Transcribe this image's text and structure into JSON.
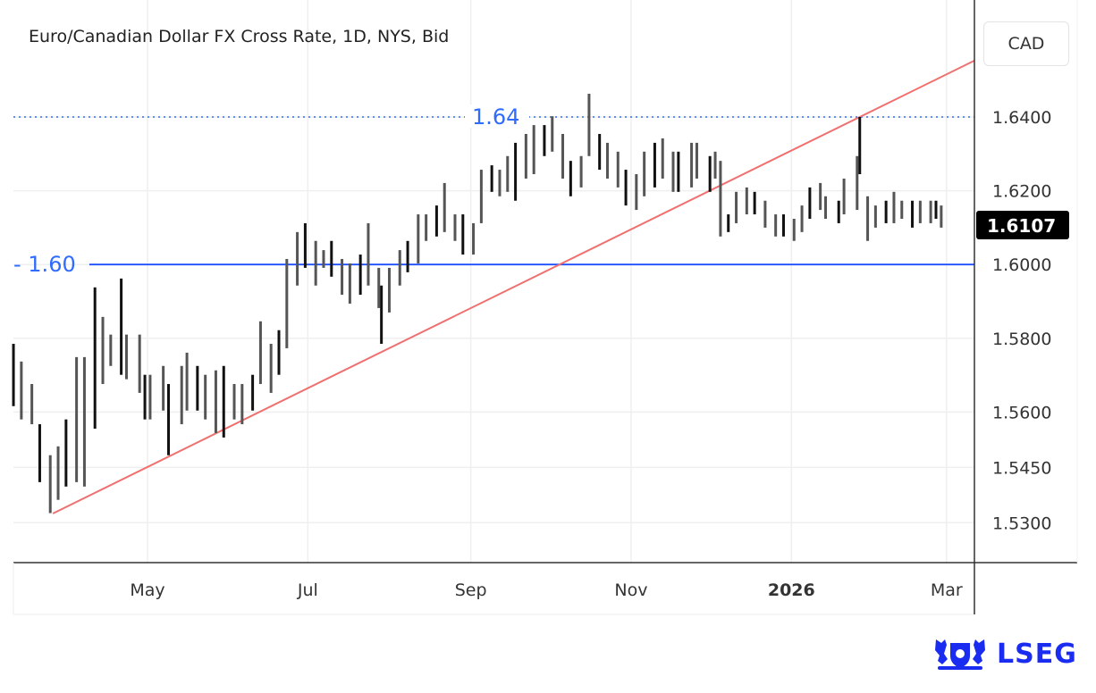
{
  "header": {
    "title": "Euro/Canadian Dollar FX Cross Rate, 1D, NYS, Bid",
    "currency_button": "CAD"
  },
  "brand": {
    "logo_text": "LSEG",
    "color": "#1a2cf0"
  },
  "chart_data": {
    "type": "ohlc-bar",
    "title": "Euro/Canadian Dollar FX Cross Rate, 1D, NYS, Bid",
    "yunit": "CAD",
    "ylim": [
      1.5225,
      1.656
    ],
    "xlim": [
      "2025-03-10",
      "2026-03-10"
    ],
    "yticks": [
      1.64,
      1.62,
      1.6,
      1.58,
      1.56,
      1.545,
      1.53
    ],
    "ytick_labels": [
      "1.6400",
      "1.6200",
      "1.6000",
      "1.5800",
      "1.5600",
      "1.5450",
      "1.5300"
    ],
    "xticks": [
      {
        "date": "2025-05-01",
        "label": "May",
        "bold": false
      },
      {
        "date": "2025-07-01",
        "label": "Jul",
        "bold": false
      },
      {
        "date": "2025-09-01",
        "label": "Sep",
        "bold": false
      },
      {
        "date": "2025-11-01",
        "label": "Nov",
        "bold": false
      },
      {
        "date": "2026-01-01",
        "label": "2026",
        "bold": true
      },
      {
        "date": "2026-03-01",
        "label": "Mar",
        "bold": false
      }
    ],
    "grid": true,
    "last_price": {
      "value": 1.6107,
      "label": "1.6107"
    },
    "horizontal_lines": [
      {
        "value": 1.64,
        "label": "1.64",
        "style": "dotted",
        "color": "#2f6bff"
      },
      {
        "value": 1.6,
        "label": "- 1.60",
        "style": "solid",
        "color": "#1e4fff"
      }
    ],
    "trendline": {
      "color": "#f07070",
      "points": [
        [
          "2025-03-26",
          1.5325
        ],
        [
          "2026-01-27",
          1.64
        ]
      ]
    },
    "bars": [
      [
        "2025-03-11",
        1.5785,
        1.5616
      ],
      [
        "2025-03-14",
        1.5737,
        1.558
      ],
      [
        "2025-03-18",
        1.5676,
        1.5567
      ],
      [
        "2025-03-21",
        1.5567,
        1.541
      ],
      [
        "2025-03-25",
        1.5483,
        1.5326
      ],
      [
        "2025-03-28",
        1.5507,
        1.5362
      ],
      [
        "2025-03-31",
        1.558,
        1.5398
      ],
      [
        "2025-04-04",
        1.5749,
        1.541
      ],
      [
        "2025-04-07",
        1.5749,
        1.5398
      ],
      [
        "2025-04-11",
        1.5938,
        1.5555
      ],
      [
        "2025-04-14",
        1.5858,
        1.5676
      ],
      [
        "2025-04-17",
        1.581,
        1.5725
      ],
      [
        "2025-04-21",
        1.5962,
        1.5701
      ],
      [
        "2025-04-23",
        1.581,
        1.5689
      ],
      [
        "2025-04-28",
        1.581,
        1.5652
      ],
      [
        "2025-04-30",
        1.5701,
        1.558
      ],
      [
        "2025-05-02",
        1.5701,
        1.558
      ],
      [
        "2025-05-07",
        1.5725,
        1.5604
      ],
      [
        "2025-05-09",
        1.5676,
        1.5483
      ],
      [
        "2025-05-14",
        1.5725,
        1.5567
      ],
      [
        "2025-05-16",
        1.5761,
        1.5604
      ],
      [
        "2025-05-20",
        1.5725,
        1.5604
      ],
      [
        "2025-05-23",
        1.5701,
        1.558
      ],
      [
        "2025-05-27",
        1.5713,
        1.5543
      ],
      [
        "2025-05-30",
        1.5725,
        1.5531
      ],
      [
        "2025-06-03",
        1.5676,
        1.558
      ],
      [
        "2025-06-06",
        1.5676,
        1.5567
      ],
      [
        "2025-06-10",
        1.5701,
        1.5604
      ],
      [
        "2025-06-13",
        1.5846,
        1.5676
      ],
      [
        "2025-06-17",
        1.5785,
        1.5652
      ],
      [
        "2025-06-20",
        1.5822,
        1.5701
      ],
      [
        "2025-06-23",
        1.6015,
        1.5773
      ],
      [
        "2025-06-27",
        1.6088,
        1.5943
      ],
      [
        "2025-06-30",
        1.6112,
        1.5991
      ],
      [
        "2025-07-04",
        1.6064,
        1.5943
      ],
      [
        "2025-07-07",
        1.6039,
        1.5991
      ],
      [
        "2025-07-10",
        1.6064,
        1.5967
      ],
      [
        "2025-07-14",
        1.6015,
        1.5918
      ],
      [
        "2025-07-17",
        1.6003,
        1.5894
      ],
      [
        "2025-07-21",
        1.6027,
        1.5918
      ],
      [
        "2025-07-24",
        1.6112,
        1.5943
      ],
      [
        "2025-07-28",
        1.5991,
        1.5882
      ],
      [
        "2025-07-29",
        1.5943,
        1.5785
      ],
      [
        "2025-08-01",
        1.5991,
        1.587
      ],
      [
        "2025-08-05",
        1.6039,
        1.5943
      ],
      [
        "2025-08-08",
        1.6064,
        1.5979
      ],
      [
        "2025-08-12",
        1.6136,
        1.6003
      ],
      [
        "2025-08-15",
        1.6136,
        1.6064
      ],
      [
        "2025-08-19",
        1.616,
        1.6076
      ],
      [
        "2025-08-22",
        1.6221,
        1.6088
      ],
      [
        "2025-08-26",
        1.6136,
        1.6064
      ],
      [
        "2025-08-29",
        1.6136,
        1.6027
      ],
      [
        "2025-09-02",
        1.6112,
        1.6027
      ],
      [
        "2025-09-05",
        1.6257,
        1.6112
      ],
      [
        "2025-09-09",
        1.6269,
        1.6197
      ],
      [
        "2025-09-12",
        1.6257,
        1.6185
      ],
      [
        "2025-09-15",
        1.6294,
        1.6197
      ],
      [
        "2025-09-18",
        1.633,
        1.6173
      ],
      [
        "2025-09-22",
        1.6354,
        1.6233
      ],
      [
        "2025-09-25",
        1.6378,
        1.6245
      ],
      [
        "2025-09-29",
        1.6378,
        1.6294
      ],
      [
        "2025-10-02",
        1.6402,
        1.6306
      ],
      [
        "2025-10-06",
        1.6354,
        1.6233
      ],
      [
        "2025-10-09",
        1.6281,
        1.6185
      ],
      [
        "2025-10-13",
        1.6294,
        1.6209
      ],
      [
        "2025-10-16",
        1.6463,
        1.6294
      ],
      [
        "2025-10-20",
        1.6354,
        1.6257
      ],
      [
        "2025-10-23",
        1.633,
        1.6233
      ],
      [
        "2025-10-27",
        1.6306,
        1.6209
      ],
      [
        "2025-10-30",
        1.6257,
        1.616
      ],
      [
        "2025-11-03",
        1.6245,
        1.6148
      ],
      [
        "2025-11-06",
        1.6306,
        1.6185
      ],
      [
        "2025-11-10",
        1.633,
        1.6209
      ],
      [
        "2025-11-13",
        1.6342,
        1.6233
      ],
      [
        "2025-11-17",
        1.6306,
        1.6197
      ],
      [
        "2025-11-19",
        1.6306,
        1.6197
      ],
      [
        "2025-11-24",
        1.633,
        1.6209
      ],
      [
        "2025-11-26",
        1.633,
        1.6233
      ],
      [
        "2025-12-01",
        1.6294,
        1.6197
      ],
      [
        "2025-12-03",
        1.6306,
        1.6233
      ],
      [
        "2025-12-05",
        1.6281,
        1.6076
      ],
      [
        "2025-12-08",
        1.6136,
        1.6088
      ],
      [
        "2025-12-11",
        1.6197,
        1.6112
      ],
      [
        "2025-12-15",
        1.6209,
        1.6136
      ],
      [
        "2025-12-18",
        1.6197,
        1.6136
      ],
      [
        "2025-12-22",
        1.6173,
        1.61
      ],
      [
        "2025-12-26",
        1.6136,
        1.6076
      ],
      [
        "2025-12-29",
        1.6136,
        1.6076
      ],
      [
        "2026-01-02",
        1.6124,
        1.6064
      ],
      [
        "2026-01-05",
        1.616,
        1.6088
      ],
      [
        "2026-01-08",
        1.6209,
        1.6124
      ],
      [
        "2026-01-12",
        1.6221,
        1.6148
      ],
      [
        "2026-01-14",
        1.6185,
        1.6124
      ],
      [
        "2026-01-19",
        1.6173,
        1.6112
      ],
      [
        "2026-01-21",
        1.6233,
        1.6136
      ],
      [
        "2026-01-26",
        1.6294,
        1.6148
      ],
      [
        "2026-01-27",
        1.64,
        1.6245
      ],
      [
        "2026-01-30",
        1.6185,
        1.6064
      ],
      [
        "2026-02-02",
        1.616,
        1.61
      ],
      [
        "2026-02-06",
        1.6173,
        1.6112
      ],
      [
        "2026-02-09",
        1.6197,
        1.6112
      ],
      [
        "2026-02-12",
        1.6173,
        1.6124
      ],
      [
        "2026-02-16",
        1.6173,
        1.61
      ],
      [
        "2026-02-19",
        1.6173,
        1.6112
      ],
      [
        "2026-02-23",
        1.6173,
        1.6112
      ],
      [
        "2026-02-25",
        1.6173,
        1.6124
      ],
      [
        "2026-02-27",
        1.616,
        1.61
      ]
    ]
  }
}
